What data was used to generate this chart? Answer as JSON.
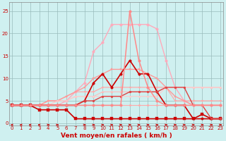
{
  "background_color": "#cff0f0",
  "grid_color": "#99bbbb",
  "xlabel": "Vent moyen/en rafales ( km/h )",
  "xlabel_color": "#cc0000",
  "yticks": [
    0,
    5,
    10,
    15,
    20,
    25
  ],
  "xticks": [
    0,
    1,
    2,
    3,
    4,
    5,
    6,
    7,
    8,
    9,
    10,
    11,
    12,
    13,
    14,
    15,
    16,
    17,
    18,
    19,
    20,
    21,
    22,
    23
  ],
  "xlim": [
    -0.3,
    23.3
  ],
  "ylim": [
    -0.5,
    27
  ],
  "x": [
    0,
    1,
    2,
    3,
    4,
    5,
    6,
    7,
    8,
    9,
    10,
    11,
    12,
    13,
    14,
    15,
    16,
    17,
    18,
    19,
    20,
    21,
    22,
    23
  ],
  "series": [
    {
      "y": [
        4,
        4,
        4,
        4,
        4,
        4,
        4,
        4,
        4,
        4,
        4,
        4,
        4,
        4,
        4,
        4,
        4,
        4,
        4,
        4,
        4,
        4,
        4,
        4
      ],
      "color": "#ffaaaa",
      "lw": 0.8,
      "marker": "o",
      "ms": 1.8
    },
    {
      "y": [
        4,
        4,
        4,
        4,
        4,
        5,
        5,
        6,
        6,
        6,
        7,
        7,
        7,
        7,
        7,
        7,
        7,
        8,
        8,
        8,
        8,
        8,
        8,
        8
      ],
      "color": "#ffbbbb",
      "lw": 0.8,
      "marker": "^",
      "ms": 2
    },
    {
      "y": [
        4,
        4,
        4,
        4,
        5,
        5,
        6,
        7,
        7,
        7,
        8,
        8,
        8,
        8,
        8,
        8,
        8,
        8,
        5,
        5,
        5,
        5,
        5,
        5
      ],
      "color": "#ffaaaa",
      "lw": 0.9,
      "marker": "v",
      "ms": 2
    },
    {
      "y": [
        4,
        4,
        4,
        4,
        4,
        4,
        5,
        7,
        9,
        16,
        18,
        22,
        22,
        22,
        22,
        22,
        21,
        14,
        8,
        5,
        4,
        4,
        4,
        4
      ],
      "color": "#ffaabb",
      "lw": 1.0,
      "marker": "o",
      "ms": 2.5
    },
    {
      "y": [
        4,
        4,
        4,
        4,
        5,
        5,
        6,
        7,
        8,
        10,
        11,
        12,
        12,
        12,
        12,
        11,
        10,
        8,
        6,
        5,
        4,
        4,
        4,
        4
      ],
      "color": "#ff9999",
      "lw": 1.0,
      "marker": "s",
      "ms": 2
    },
    {
      "y": [
        4,
        4,
        4,
        4,
        4,
        5,
        5,
        6,
        6,
        6,
        6,
        6,
        6,
        6,
        6,
        6,
        6,
        8,
        8,
        8,
        8,
        8,
        8,
        8
      ],
      "color": "#ffcccc",
      "lw": 0.8,
      "marker": "o",
      "ms": 1.5
    },
    {
      "y": [
        4,
        4,
        4,
        4,
        4,
        4,
        4,
        4,
        5,
        9,
        11,
        8,
        11,
        14,
        11,
        11,
        7,
        4,
        4,
        4,
        1,
        1,
        1,
        1
      ],
      "color": "#cc0000",
      "lw": 1.2,
      "marker": "o",
      "ms": 2.5
    },
    {
      "y": [
        4,
        4,
        4,
        3,
        3,
        3,
        3,
        1,
        1,
        1,
        1,
        1,
        1,
        1,
        1,
        1,
        1,
        1,
        1,
        1,
        1,
        2,
        1,
        1
      ],
      "color": "#cc0000",
      "lw": 1.2,
      "marker": "s",
      "ms": 2.5
    },
    {
      "y": [
        4,
        4,
        4,
        4,
        4,
        4,
        4,
        4,
        5,
        5,
        6,
        6,
        6,
        7,
        7,
        7,
        7,
        8,
        8,
        8,
        4,
        4,
        1,
        1
      ],
      "color": "#dd4444",
      "lw": 1.0,
      "marker": "o",
      "ms": 2
    },
    {
      "y": [
        4,
        4,
        4,
        4,
        4,
        4,
        4,
        4,
        4,
        4,
        4,
        4,
        4,
        25,
        14,
        8,
        5,
        4,
        4,
        4,
        4,
        4,
        4,
        4
      ],
      "color": "#ff8888",
      "lw": 1.1,
      "marker": "o",
      "ms": 2.5
    }
  ],
  "arrows": {
    "x_positions": [
      0,
      1,
      2,
      3,
      4,
      5,
      6,
      7,
      8,
      9,
      10,
      11,
      12,
      13,
      14,
      15,
      16,
      17,
      18,
      19,
      20,
      21,
      22,
      23
    ],
    "y": -0.35,
    "color": "#cc0000"
  },
  "tick_fontsize": 5.0,
  "label_fontsize": 6.5
}
